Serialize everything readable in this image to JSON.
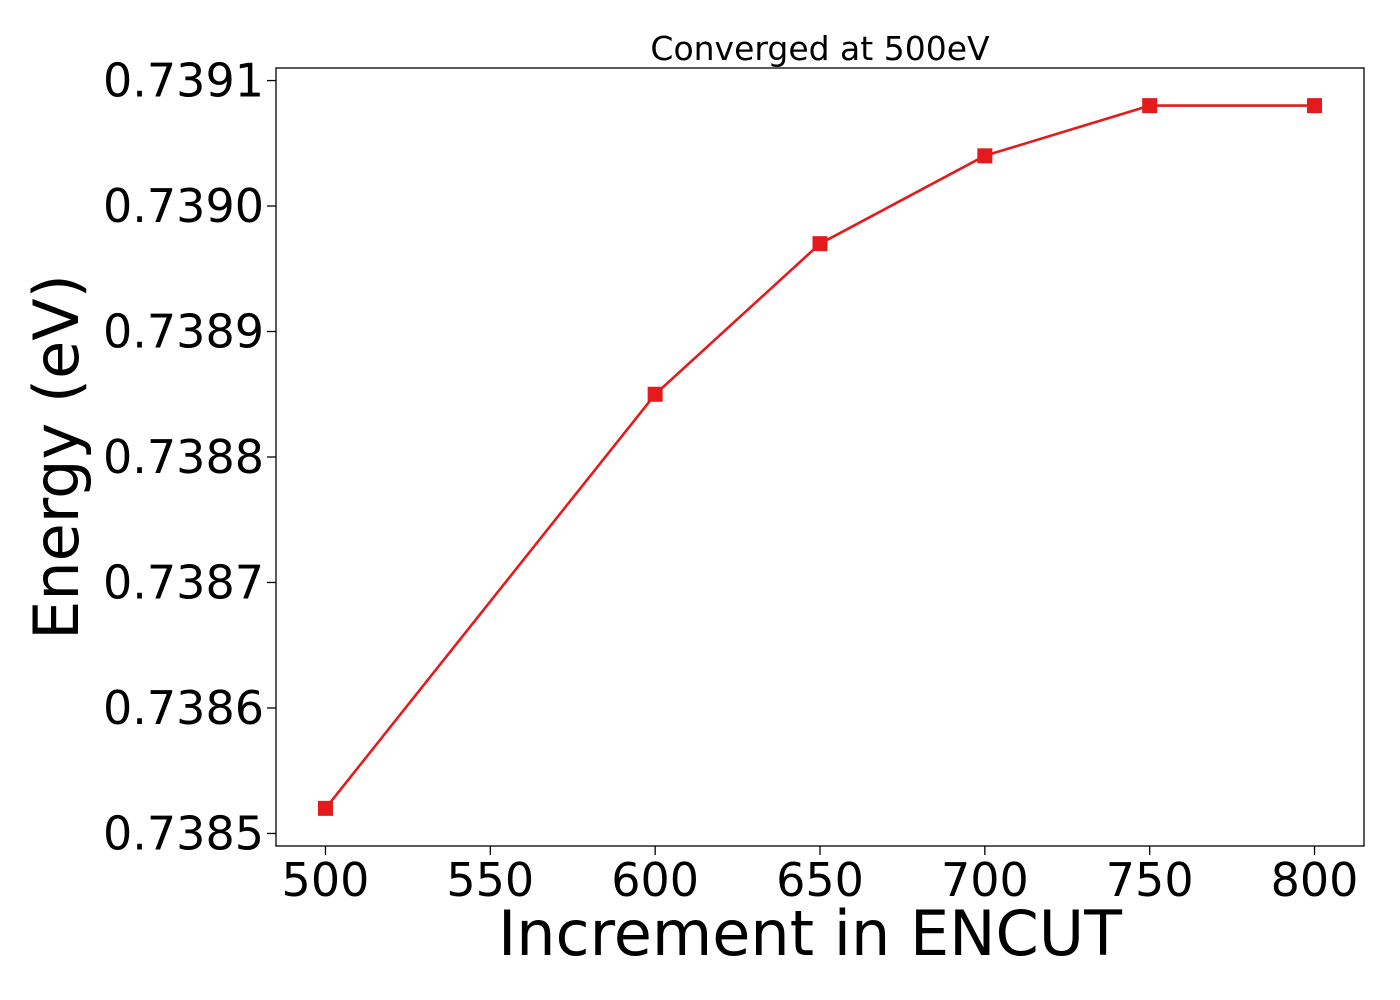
{
  "chart_data": {
    "type": "line",
    "title": "Converged at 500eV",
    "xlabel": "Increment in ENCUT",
    "ylabel": "Energy (eV)",
    "x": [
      500,
      600,
      650,
      700,
      750,
      800
    ],
    "series": [
      {
        "values": [
          0.73852,
          0.73885,
          0.73897,
          0.73904,
          0.73908,
          0.73908
        ],
        "color": "#e41a1c",
        "marker": "square"
      }
    ],
    "xticks": [
      500,
      550,
      600,
      650,
      700,
      750,
      800
    ],
    "xtick_labels": [
      "500",
      "550",
      "600",
      "650",
      "700",
      "750",
      "800"
    ],
    "yticks": [
      0.7385,
      0.7386,
      0.7387,
      0.7388,
      0.7389,
      0.739,
      0.7391
    ],
    "ytick_labels": [
      "0.7385",
      "0.7386",
      "0.7387",
      "0.7388",
      "0.7389",
      "0.7390",
      "0.7391"
    ],
    "xlim": [
      485,
      815
    ],
    "ylim": [
      0.73849,
      0.73911
    ],
    "grid": false,
    "legend": "none"
  }
}
